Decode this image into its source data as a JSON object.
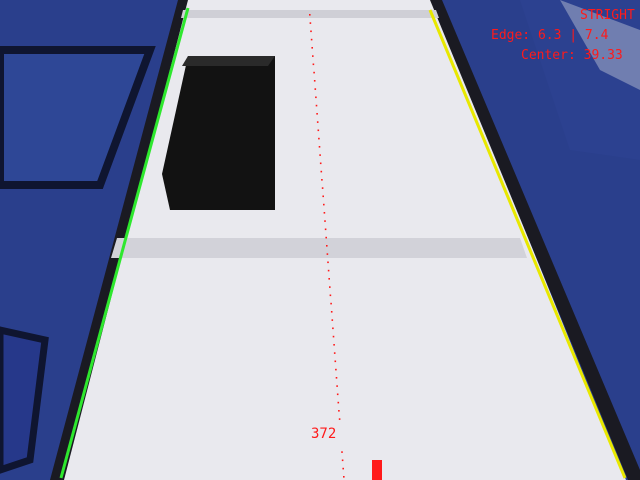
{
  "hud": {
    "mode": "STRIGHT",
    "edge": "Edge: 6.3 | 7.4",
    "center": "Center: 39.33",
    "distance": "372"
  },
  "colors": {
    "left_edge_line": "#2ee82e",
    "right_edge_line": "#e8e800",
    "centerline_dots": "#ff1a1a",
    "hud_text": "#ff1a1a",
    "mat": "#2a3f8c",
    "lane": "#e9e9ee",
    "block": "#141414"
  },
  "icons": {
    "obstacle": "black-box-obstacle",
    "center_marker": "red-bar-marker"
  }
}
